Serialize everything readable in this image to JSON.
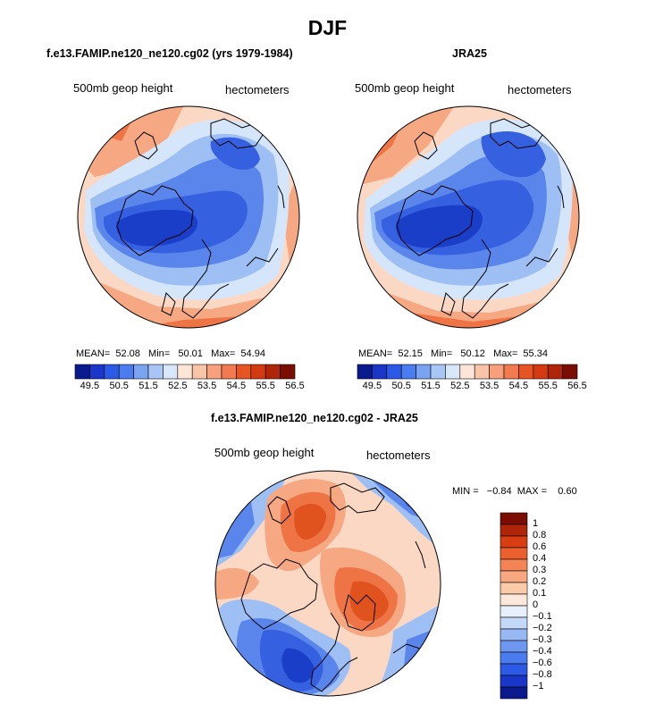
{
  "title": "DJF",
  "panels": [
    {
      "title": "f.e13.FAMIP.ne120_ne120.cg02 (yrs 1979-1984)",
      "left_label": "500mb geop height",
      "right_label": "hectometers",
      "stats": {
        "mean_label": "MEAN=",
        "mean": "52.08",
        "min_label": "Min=",
        "min": "50.01",
        "max_label": "Max=",
        "max": "54.94"
      }
    },
    {
      "title": "JRA25",
      "left_label": "500mb geop height",
      "right_label": "hectometers",
      "stats": {
        "mean_label": "MEAN=",
        "mean": "52.15",
        "min_label": "Min=",
        "min": "50.12",
        "max_label": "Max=",
        "max": "55.34"
      }
    }
  ],
  "diff_panel": {
    "title": "f.e13.FAMIP.ne120_ne120.cg02 - JRA25",
    "left_label": "500mb geop height",
    "right_label": "hectometers",
    "minmax": "MIN =   −0.84  MAX =    0.60"
  },
  "colorbar_top": {
    "colors": [
      "#0a1a8c",
      "#1a36c8",
      "#2c5ae6",
      "#4a7cf0",
      "#7aa4f2",
      "#a8c6f6",
      "#d8e8fa",
      "#fde6d8",
      "#f9c4a8",
      "#f6a07c",
      "#f17a50",
      "#e65424",
      "#d43a10",
      "#b02408",
      "#7a0e04"
    ],
    "labels": [
      "49.5",
      "50.5",
      "51.5",
      "52.5",
      "53.5",
      "54.5",
      "55.5",
      "56.5"
    ]
  },
  "colorbar_diff": {
    "colors": [
      "#0a1a8c",
      "#1a36c8",
      "#2c5ae6",
      "#4a7cf0",
      "#6e98f0",
      "#98b8f4",
      "#c4d8f8",
      "#e8f0fc",
      "#fde8dc",
      "#fbcaa8",
      "#f8a880",
      "#f48456",
      "#ec602e",
      "#d83e12",
      "#b02408",
      "#7a0e04"
    ],
    "labels": [
      "1",
      "0.8",
      "0.6",
      "0.4",
      "0.3",
      "0.2",
      "0.1",
      "0",
      "−0.1",
      "−0.2",
      "−0.3",
      "−0.4",
      "−0.6",
      "−0.8",
      "−1"
    ]
  },
  "map_colors": {
    "deep_blue": "#1a3ec8",
    "blue": "#3560e0",
    "mid_blue": "#5a86ec",
    "light_blue": "#9ebff4",
    "pale_blue": "#d6e6fa",
    "pale_red": "#fbd8c4",
    "light_red": "#f6a882",
    "red": "#ee7446",
    "deep_red": "#e0521e",
    "coast": "#000000"
  }
}
